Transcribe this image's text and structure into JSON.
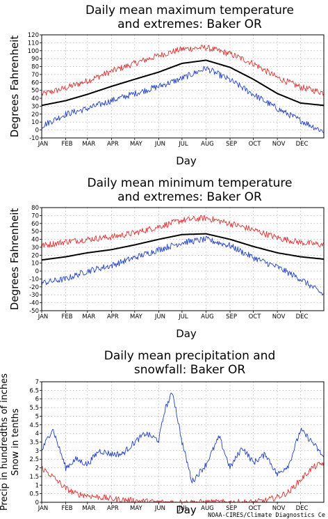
{
  "credit": "NOAA-CIRES/Climate Diagnostics Ce",
  "colors": {
    "max_extreme": "#e03030",
    "mean": "#000000",
    "min_extreme": "#2040c8",
    "grid": "#999999"
  },
  "chart_data": [
    {
      "type": "line",
      "title": [
        "Daily mean maximum temperature",
        "and extremes: Baker OR"
      ],
      "xlabel": "Day",
      "ylabel": "Degrees Fahrenheit",
      "ylim": [
        -10,
        120
      ],
      "yticks": [
        -10,
        0,
        10,
        20,
        30,
        40,
        50,
        60,
        70,
        80,
        90,
        100,
        110,
        120
      ],
      "grid": true,
      "x_unit": "day of year",
      "month_labels": [
        "JAN",
        "FEB",
        "MAR",
        "APR",
        "MAY",
        "JUN",
        "JUL",
        "AUG",
        "SEP",
        "OCT",
        "NOV",
        "DEC"
      ],
      "x": [
        1,
        32,
        60,
        91,
        121,
        152,
        182,
        213,
        244,
        274,
        305,
        335,
        365
      ],
      "series": [
        {
          "color": "#e03030",
          "values": [
            45,
            53,
            62,
            74,
            84,
            94,
            102,
            104,
            96,
            84,
            66,
            54,
            47
          ]
        },
        {
          "color": "#000000",
          "values": [
            31,
            37,
            45,
            55,
            64,
            73,
            84,
            88,
            79,
            64,
            46,
            34,
            31
          ]
        },
        {
          "color": "#2040c8",
          "values": [
            5,
            20,
            27,
            37,
            46,
            55,
            65,
            78,
            63,
            45,
            27,
            12,
            -2
          ]
        }
      ]
    },
    {
      "type": "line",
      "title": [
        "Daily mean minimum temperature",
        "and extremes: Baker OR"
      ],
      "xlabel": "Day",
      "ylabel": "Degrees Fahrenheit",
      "ylim": [
        -50,
        80
      ],
      "yticks": [
        -50,
        -40,
        -30,
        -20,
        -10,
        0,
        10,
        20,
        30,
        40,
        50,
        60,
        70,
        80
      ],
      "grid": true,
      "x_unit": "day of year",
      "month_labels": [
        "JAN",
        "FEB",
        "MAR",
        "APR",
        "MAY",
        "JUN",
        "JUL",
        "AUG",
        "SEP",
        "OCT",
        "NOV",
        "DEC"
      ],
      "x": [
        1,
        32,
        60,
        91,
        121,
        152,
        182,
        213,
        244,
        274,
        305,
        335,
        365
      ],
      "series": [
        {
          "color": "#e03030",
          "values": [
            32,
            37,
            40,
            43,
            48,
            56,
            64,
            67,
            60,
            52,
            42,
            36,
            33
          ]
        },
        {
          "color": "#000000",
          "values": [
            14,
            18,
            23,
            27,
            33,
            40,
            46,
            47,
            40,
            31,
            23,
            18,
            15
          ]
        },
        {
          "color": "#2040c8",
          "values": [
            -15,
            -10,
            0,
            7,
            17,
            27,
            36,
            40,
            32,
            17,
            5,
            -10,
            -30
          ]
        }
      ]
    },
    {
      "type": "line",
      "title": [
        "Daily mean precipitation and",
        "snowfall: Baker OR"
      ],
      "xlabel": "Day",
      "ylabel": [
        "Precip in hundredths of inches",
        "Snow in tenths"
      ],
      "ylim": [
        0,
        7
      ],
      "yticks": [
        0,
        0.5,
        1,
        1.5,
        2,
        2.5,
        3,
        3.5,
        4,
        4.5,
        5,
        5.5,
        6,
        6.5,
        7
      ],
      "grid": true,
      "x_unit": "day of year",
      "month_labels": [
        "JAN",
        "FEB",
        "MAR",
        "APR",
        "MAY",
        "JUN",
        "JUL",
        "AUG",
        "SEP",
        "OCT",
        "NOV",
        "DEC"
      ],
      "x": [
        1,
        15,
        32,
        45,
        60,
        75,
        91,
        105,
        121,
        135,
        152,
        160,
        170,
        182,
        195,
        213,
        230,
        244,
        260,
        274,
        290,
        305,
        320,
        335,
        350,
        365
      ],
      "series": [
        {
          "color": "#2040c8",
          "values": [
            3.0,
            4.3,
            2.0,
            2.5,
            2.2,
            3.0,
            2.8,
            2.8,
            3.5,
            4.0,
            3.6,
            5.4,
            6.4,
            3.5,
            1.2,
            2.2,
            3.8,
            2.0,
            3.2,
            2.3,
            2.8,
            1.6,
            2.2,
            4.2,
            3.5,
            2.6
          ]
        },
        {
          "color": "#e03030",
          "values": [
            2.0,
            1.5,
            0.8,
            0.5,
            0.4,
            0.3,
            0.2,
            0.15,
            0.1,
            0.05,
            0.0,
            0.0,
            0.0,
            0.0,
            0.0,
            0.0,
            0.0,
            0.0,
            0.0,
            0.0,
            0.1,
            0.3,
            0.6,
            1.3,
            2.0,
            2.3
          ]
        }
      ]
    }
  ]
}
